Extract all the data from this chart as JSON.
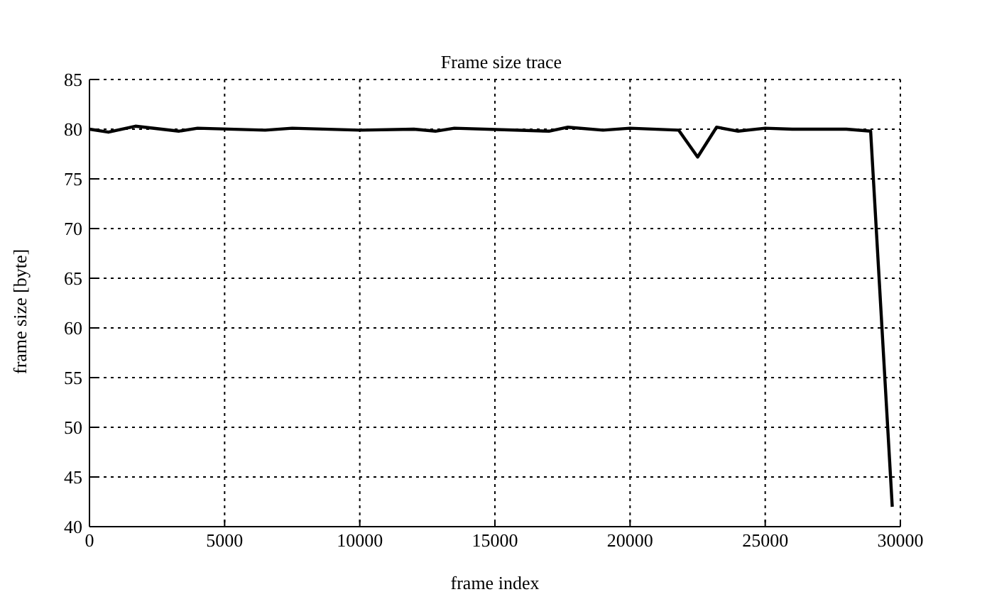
{
  "chart_data": {
    "type": "line",
    "title": "Frame size trace",
    "xlabel": "frame index",
    "ylabel": "frame size [byte]",
    "x": [
      0,
      700,
      1700,
      3300,
      4000,
      6500,
      7500,
      10000,
      12000,
      12800,
      13500,
      17000,
      17700,
      19000,
      20000,
      21800,
      22500,
      23200,
      24000,
      25000,
      26000,
      28000,
      28900,
      29700
    ],
    "series": [
      {
        "color": "#000000",
        "values": [
          80,
          79.7,
          80.3,
          79.8,
          80.1,
          79.9,
          80.1,
          79.9,
          80,
          79.8,
          80.1,
          79.8,
          80.2,
          79.9,
          80.1,
          79.9,
          77.2,
          80.2,
          79.8,
          80.1,
          80,
          80,
          79.8,
          42
        ]
      }
    ],
    "xlim": [
      0,
      30000
    ],
    "xticks": [
      0,
      5000,
      10000,
      15000,
      20000,
      25000,
      30000
    ],
    "ylim": [
      40,
      85
    ],
    "yticks": [
      40,
      45,
      50,
      55,
      60,
      65,
      70,
      75,
      80,
      85
    ],
    "grid": true,
    "marker": "none",
    "line_style": "solid"
  }
}
